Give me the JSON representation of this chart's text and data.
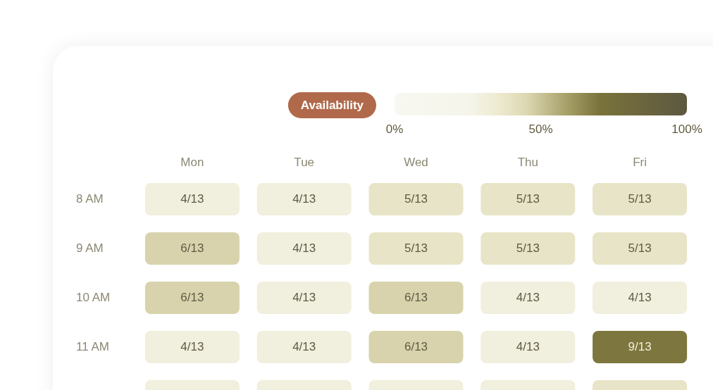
{
  "chart_data": {
    "type": "heatmap",
    "clabel": "Availability",
    "categories": [
      "Mon",
      "Tue",
      "Wed",
      "Thu",
      "Fri"
    ],
    "y_categories": [
      "8 AM",
      "9 AM",
      "10 AM",
      "11 AM",
      null
    ],
    "cells": [
      [
        30.8,
        30.8,
        38.5,
        38.5,
        38.5
      ],
      [
        46.2,
        30.8,
        38.5,
        38.5,
        38.5
      ],
      [
        46.2,
        30.8,
        46.2,
        30.8,
        30.8
      ],
      [
        30.8,
        30.8,
        46.2,
        30.8,
        69.2
      ],
      [
        30.8,
        30.8,
        30.8,
        30.8,
        38.5
      ]
    ],
    "cell_labels": [
      [
        "4/13",
        "4/13",
        "5/13",
        "5/13",
        "5/13"
      ],
      [
        "6/13",
        "4/13",
        "5/13",
        "5/13",
        "5/13"
      ],
      [
        "6/13",
        "4/13",
        "6/13",
        "4/13",
        "4/13"
      ],
      [
        "4/13",
        "4/13",
        "6/13",
        "4/13",
        "9/13"
      ],
      [
        null,
        null,
        null,
        null,
        null
      ]
    ],
    "clim": [
      0,
      100
    ],
    "cticks": [
      {
        "value": 0,
        "label": "0%"
      },
      {
        "value": 50,
        "label": "50%"
      },
      {
        "value": 100,
        "label": "100%"
      }
    ]
  }
}
